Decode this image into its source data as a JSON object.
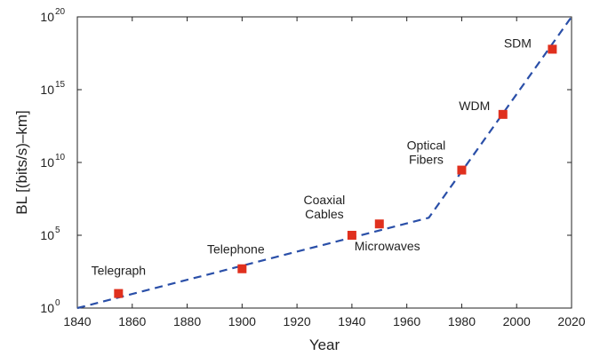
{
  "chart_data": {
    "type": "scatter",
    "xlabel": "Year",
    "ylabel": "BL [(bits/s)–km]",
    "xlim": [
      1840,
      2020
    ],
    "ylim_log10": [
      0,
      20
    ],
    "y_scale": "log",
    "grid": false,
    "x_ticks": [
      "1840",
      "1860",
      "1880",
      "1900",
      "1920",
      "1940",
      "1960",
      "1980",
      "2000",
      "2020"
    ],
    "y_ticks": [
      {
        "base": "10",
        "exp": "0"
      },
      {
        "base": "10",
        "exp": "5"
      },
      {
        "base": "10",
        "exp": "10"
      },
      {
        "base": "10",
        "exp": "15"
      },
      {
        "base": "10",
        "exp": "20"
      }
    ],
    "points": [
      {
        "x": 1855,
        "y": 10,
        "label": "Telegraph"
      },
      {
        "x": 1900,
        "y": 500,
        "label": "Telephone"
      },
      {
        "x": 1940,
        "y": 100000,
        "label": "Coaxial Cables"
      },
      {
        "x": 1950,
        "y": 600000,
        "label": "Microwaves"
      },
      {
        "x": 1980,
        "y": 3000000000.0,
        "label": "Optical Fibers"
      },
      {
        "x": 1995,
        "y": 20000000000000.0,
        "label": "WDM"
      },
      {
        "x": 2013,
        "y": 6e+17,
        "label": "SDM"
      }
    ],
    "trend_line": [
      {
        "x": 1840,
        "y": 1
      },
      {
        "x": 1968,
        "y": 1600000.0
      },
      {
        "x": 2020,
        "y": 1e+20
      }
    ],
    "annotations": [
      {
        "lines": [
          "Telegraph"
        ]
      },
      {
        "lines": [
          "Telephone"
        ]
      },
      {
        "lines": [
          "Coaxial",
          "Cables"
        ]
      },
      {
        "lines": [
          "Microwaves"
        ]
      },
      {
        "lines": [
          "Optical",
          "Fibers"
        ]
      },
      {
        "lines": [
          "WDM"
        ]
      },
      {
        "lines": [
          "SDM"
        ]
      }
    ],
    "colors": {
      "marker": "#e0301e",
      "line": "#2a4fa8",
      "axis": "#222222"
    }
  }
}
